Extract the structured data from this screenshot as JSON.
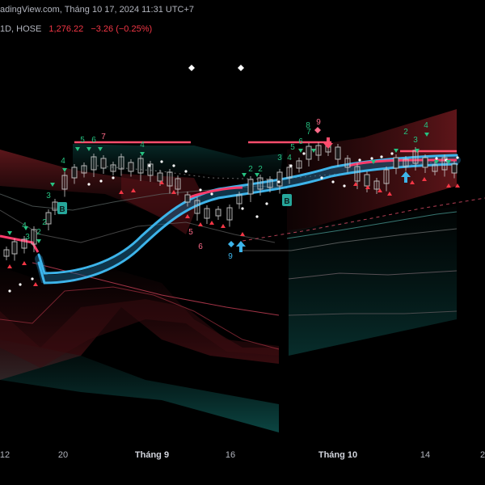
{
  "header": {
    "watermark_line": "adingView.com, Tháng 10 17, 2024 11:31 UTC+7",
    "symbol_meta": "1D, HOSE",
    "last_price": "1,276.22",
    "change": "−3.26 (−0.25%)"
  },
  "colors": {
    "bg": "#000000",
    "bull": "#26a69a",
    "bear": "#f23645",
    "candle_outline": "#c8c8c8",
    "ma_band": "#2fa8e0",
    "signal_pink": "#ff3b6b",
    "signal_green": "#26c281"
  },
  "chart_data": {
    "type": "line",
    "x_axis_ticks": [
      {
        "label": "12",
        "major": false
      },
      {
        "label": "20",
        "major": false
      },
      {
        "label": "Tháng 9",
        "major": true
      },
      {
        "label": "16",
        "major": false
      },
      {
        "label": "Tháng 10",
        "major": true
      },
      {
        "label": "14",
        "major": false
      },
      {
        "label": "2",
        "major": false
      }
    ],
    "buy_markers": [
      "B",
      "B"
    ],
    "count_labels": [
      "4",
      "3",
      "2",
      "4",
      "5",
      "6",
      "7",
      "4",
      "3",
      "2",
      "5",
      "6",
      "9",
      "2",
      "2",
      "3",
      "4",
      "5",
      "6",
      "7",
      "8",
      "9",
      "2",
      "3",
      "4"
    ],
    "series": [
      {
        "values": [
          1248,
          1250,
          1249,
          1244,
          1238,
          1236,
          1237,
          1240,
          1244,
          1249,
          1254,
          1258,
          1262,
          1266,
          1270,
          1272,
          1273,
          1274,
          1276,
          1278,
          1279,
          1280,
          1281,
          1283,
          1285,
          1286,
          1286,
          1287,
          1287,
          1288
        ]
      }
    ]
  }
}
